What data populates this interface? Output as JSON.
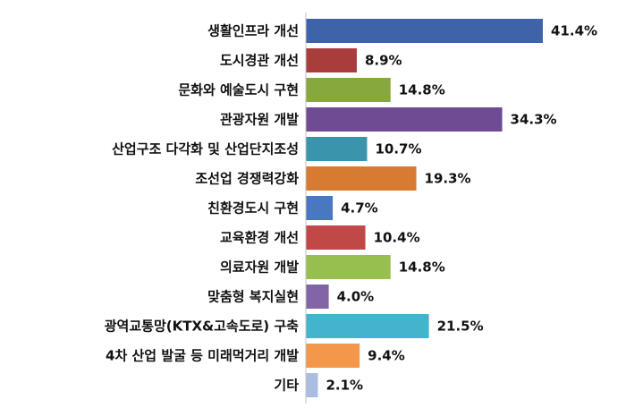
{
  "chart_data": {
    "type": "bar",
    "orientation": "horizontal",
    "categories": [
      "생활인프라 개선",
      "도시경관 개선",
      "문화와 예술도시 구현",
      "관광자원 개발",
      "산업구조 다각화 및 산업단지조성",
      "조선업 경쟁력강화",
      "친환경도시 구현",
      "교육환경 개선",
      "의료자원 개발",
      "맞춤형 복지실현",
      "광역교통망(KTX&고속도로) 구축",
      "4차 산업 발굴 등 미래먹거리 개발",
      "기타"
    ],
    "values": [
      41.4,
      8.9,
      14.8,
      34.3,
      10.7,
      19.3,
      4.7,
      10.4,
      14.8,
      4.0,
      21.5,
      9.4,
      2.1
    ],
    "value_labels": [
      "41.4%",
      "8.9%",
      "14.8%",
      "34.3%",
      "10.7%",
      "19.3%",
      "4.7%",
      "10.4%",
      "14.8%",
      "4.0%",
      "21.5%",
      "9.4%",
      "2.1%"
    ],
    "colors": [
      "#3f63a8",
      "#a83d3c",
      "#86a83d",
      "#6e4b92",
      "#3a94ac",
      "#d87b32",
      "#4a78c0",
      "#c04846",
      "#96bf4f",
      "#8165a6",
      "#43b4cd",
      "#f3984b",
      "#a9bde0"
    ],
    "title": "",
    "xlabel": "",
    "ylabel": "",
    "xlim": [
      0,
      41.4
    ],
    "grid": false,
    "legend": "none"
  }
}
